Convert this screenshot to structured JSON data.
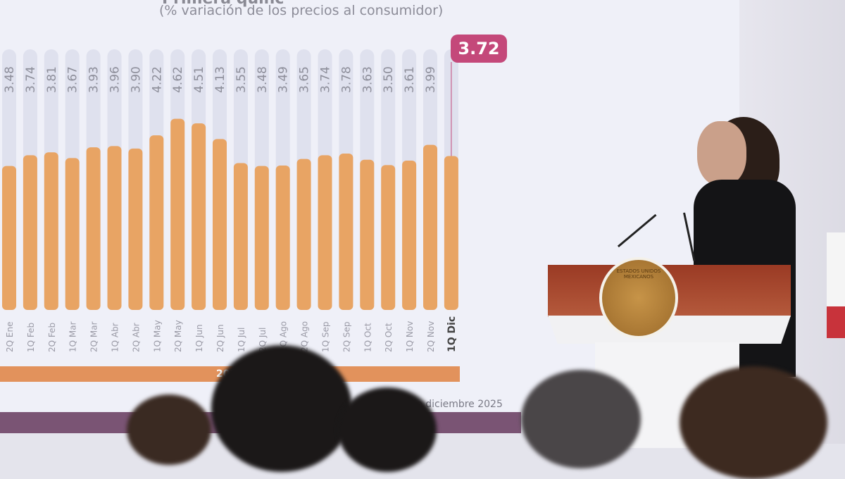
{
  "slide": {
    "title": "Primera quinc",
    "subtitle": "(% variación de los precios al consumidor)",
    "callout_value": "3.72",
    "year_label": "2025",
    "footer": "23 de diciembre 2025",
    "seal_text": "ESTADOS UNIDOS MEXICANOS"
  },
  "colors": {
    "bar": "#e8a464",
    "track": "#dfe1ee",
    "callout": "#c4487a",
    "year_bar": "#e2925c",
    "podium": "#a8472f"
  },
  "chart_data": {
    "type": "bar",
    "title": "Primera quinc",
    "subtitle": "(% variación de los precios al consumidor)",
    "categories": [
      "2Q Ene",
      "1Q Feb",
      "2Q Feb",
      "1Q Mar",
      "2Q Mar",
      "1Q Abr",
      "2Q Abr",
      "1Q May",
      "2Q May",
      "1Q Jun",
      "2Q Jun",
      "1Q Jul",
      "2Q Jul",
      "1Q Ago",
      "2Q Ago",
      "1Q Sep",
      "2Q Sep",
      "1Q Oct",
      "2Q Oct",
      "1Q Nov",
      "2Q Nov",
      "1Q Dic"
    ],
    "values": [
      3.48,
      3.74,
      3.81,
      3.67,
      3.93,
      3.96,
      3.9,
      4.22,
      4.62,
      4.51,
      4.13,
      3.55,
      3.48,
      3.49,
      3.65,
      3.74,
      3.78,
      3.63,
      3.5,
      3.61,
      3.99,
      3.72
    ],
    "labels": [
      "3.48",
      "3.74",
      "3.81",
      "3.67",
      "3.93",
      "3.96",
      "3.90",
      "4.22",
      "4.62",
      "4.51",
      "4.13",
      "3.55",
      "3.48",
      "3.49",
      "3.65",
      "3.74",
      "3.78",
      "3.63",
      "3.50",
      "3.61",
      "3.99",
      "3.72"
    ],
    "highlight": "1Q Dic",
    "xgroup_label": "2025",
    "ylim": [
      0,
      8
    ],
    "grid": false
  }
}
